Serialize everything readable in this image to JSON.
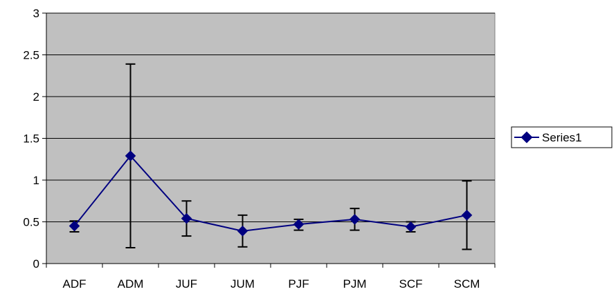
{
  "chart_data": {
    "type": "line",
    "categories": [
      "ADF",
      "ADM",
      "JUF",
      "JUM",
      "PJF",
      "PJM",
      "SCF",
      "SCM"
    ],
    "series": [
      {
        "name": "Series1",
        "values": [
          0.45,
          1.29,
          0.54,
          0.39,
          0.47,
          0.53,
          0.44,
          0.58
        ],
        "error_low": [
          0.38,
          0.19,
          0.33,
          0.2,
          0.4,
          0.4,
          0.38,
          0.17
        ],
        "error_high": [
          0.51,
          2.39,
          0.75,
          0.58,
          0.53,
          0.66,
          0.5,
          0.99
        ]
      }
    ],
    "ylim": [
      0,
      3
    ],
    "yticks": [
      0,
      0.5,
      1,
      1.5,
      2,
      2.5,
      3
    ],
    "ytick_labels": [
      "0",
      "0.5",
      "1",
      "1.5",
      "2",
      "2.5",
      "3"
    ],
    "grid": true,
    "legend_position": "right",
    "colors": {
      "plot_background": "#c0c0c0",
      "series_line": "#000080",
      "error_bars": "#000000",
      "gridlines": "#000000"
    }
  }
}
